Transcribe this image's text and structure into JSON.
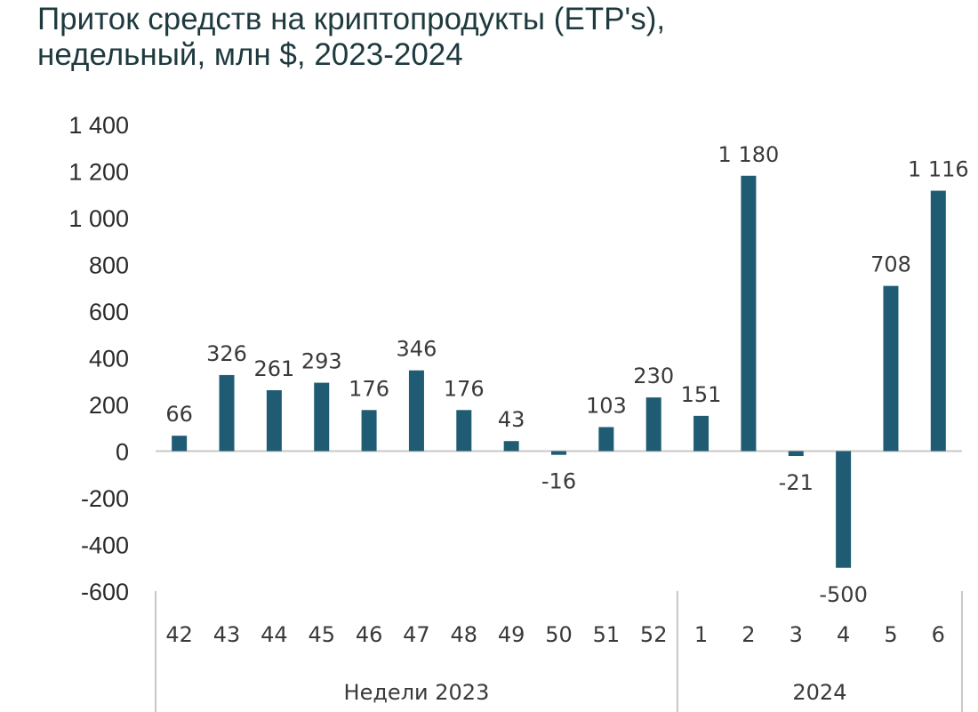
{
  "title_line1": "Приток средств на криптопродукты (ETP's),",
  "title_line2": "недельный, млн $, 2023-2024",
  "chart_data": {
    "type": "bar",
    "title": "Приток средств на криптопродукты (ETP's), недельный, млн $, 2023-2024",
    "categories": [
      "42",
      "43",
      "44",
      "45",
      "46",
      "47",
      "48",
      "49",
      "50",
      "51",
      "52",
      "1",
      "2",
      "3",
      "4",
      "5",
      "6"
    ],
    "values": [
      66,
      326,
      261,
      293,
      176,
      346,
      176,
      43,
      -16,
      103,
      230,
      151,
      1180,
      -21,
      -500,
      708,
      1116
    ],
    "data_labels": [
      "66",
      "326",
      "261",
      "293",
      "176",
      "346",
      "176",
      "43",
      "-16",
      "103",
      "230",
      "151",
      "1 180",
      "-21",
      "-500",
      "708",
      "1 116"
    ],
    "groups": [
      {
        "label": "Недели 2023",
        "start": 0,
        "end": 10
      },
      {
        "label": "2024",
        "start": 11,
        "end": 16
      }
    ],
    "yticks": [
      1400,
      1200,
      1000,
      800,
      600,
      400,
      200,
      0,
      -200,
      -400,
      -600
    ],
    "ytick_labels": [
      "1 400",
      "1 200",
      "1 000",
      "800",
      "600",
      "400",
      "200",
      "0",
      "-200",
      "-400",
      "-600"
    ],
    "ylim": [
      -600,
      1400
    ],
    "bar_color": "#1f5c73",
    "grid": false
  }
}
